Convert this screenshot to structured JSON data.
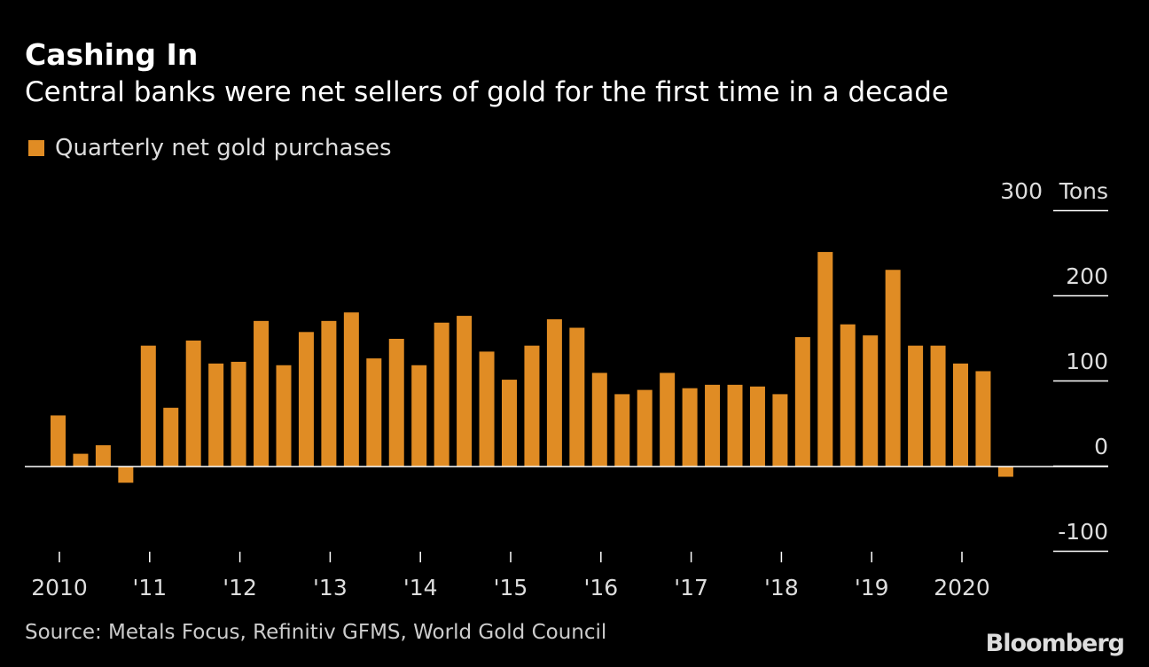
{
  "chart_data": {
    "type": "bar",
    "title": "Cashing In",
    "subtitle": "Central banks were net sellers of gold for the first time in a decade",
    "legend": [
      {
        "name": "Quarterly net gold purchases",
        "color": "#e08c24"
      }
    ],
    "ylabel": "Tons",
    "ylim": [
      -100,
      300
    ],
    "yticks": [
      300,
      200,
      100,
      0,
      -100
    ],
    "ytick_labels": [
      "300",
      "200",
      "100",
      "0",
      "-100"
    ],
    "xtick_labels": [
      "2010",
      "'11",
      "'12",
      "'13",
      "'14",
      "'15",
      "'16",
      "'17",
      "'18",
      "'19",
      "2020"
    ],
    "grid": false,
    "series": [
      {
        "name": "Quarterly net gold purchases",
        "values": [
          60,
          15,
          25,
          -19,
          142,
          69,
          148,
          121,
          123,
          171,
          119,
          158,
          171,
          181,
          127,
          150,
          119,
          169,
          177,
          135,
          102,
          142,
          173,
          163,
          110,
          85,
          90,
          110,
          92,
          96,
          96,
          94,
          85,
          152,
          252,
          167,
          154,
          231,
          142,
          142,
          121,
          112,
          -12
        ]
      }
    ],
    "x_start": "2010 Q1",
    "x_end": "2020 Q3"
  },
  "source": "Source: Metals Focus, Refinitiv GFMS, World Gold Council",
  "logo": "Bloomberg",
  "colors": {
    "bar": "#e08c24",
    "background": "#000000",
    "axis": "#ffffff"
  }
}
